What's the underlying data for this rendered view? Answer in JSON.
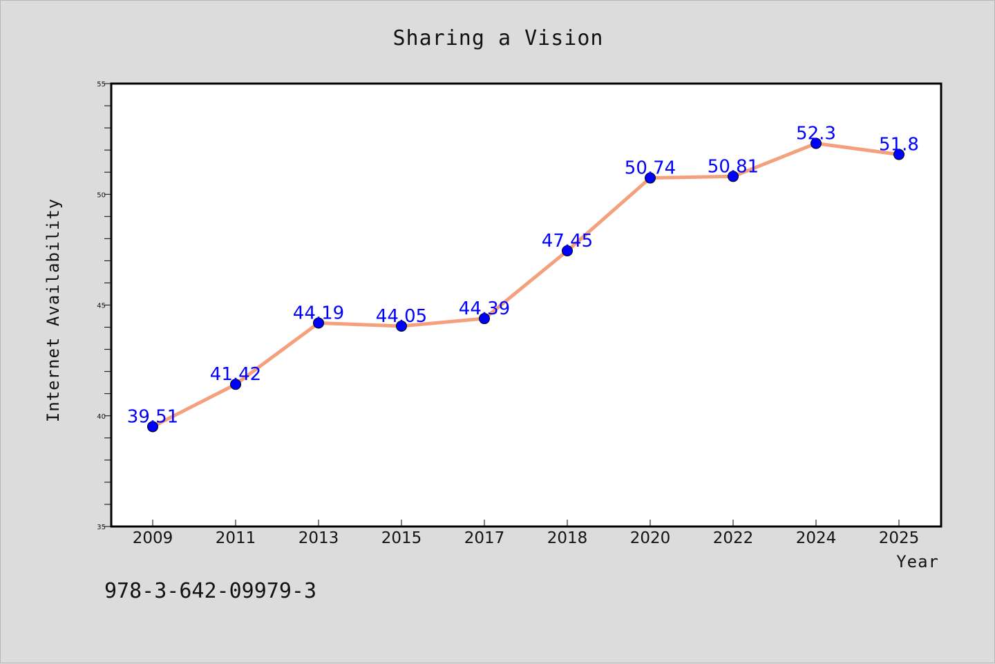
{
  "chart_data": {
    "type": "line",
    "title": "Sharing a Vision",
    "xlabel": "Year",
    "ylabel": "Internet Availability",
    "categories": [
      "2009",
      "2011",
      "2013",
      "2015",
      "2017",
      "2018",
      "2020",
      "2022",
      "2024",
      "2025"
    ],
    "series": [
      {
        "values": [
          39.51,
          41.42,
          44.19,
          44.05,
          44.39,
          47.45,
          50.74,
          50.81,
          52.3,
          51.8
        ],
        "data_labels": [
          "39.51",
          "41.42",
          "44.19",
          "44.05",
          "44.39",
          "47.45",
          "50.74",
          "50.81",
          "52.3",
          "51.8"
        ],
        "line_color": "#f4a07c",
        "marker_color": "#0000ff"
      }
    ],
    "ylim": [
      35,
      55
    ],
    "yticks": [
      "35",
      "40",
      "45",
      "50",
      "55"
    ],
    "grid": false,
    "legend": "none"
  },
  "footer_text": "978-3-642-09979-3"
}
